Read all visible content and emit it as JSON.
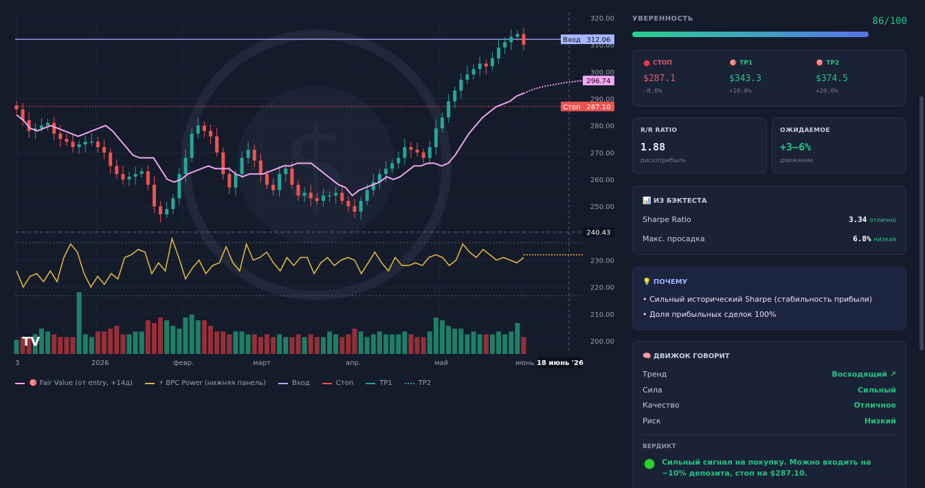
{
  "colors": {
    "bg": "#141b2b",
    "up": "#26a69a",
    "down": "#ef5350",
    "fair": "#f2a6f0",
    "power": "#e3b73a",
    "entry": "#a9b7ff",
    "stop": "#ef5350",
    "tp1": "#26a69a",
    "tp2": "#26a69a",
    "accent_green": "#26c281",
    "accent_red": "#e05d6a"
  },
  "chart_data": {
    "type": "candlestick",
    "y_ticks": [
      "320.00",
      "310.00",
      "300.00",
      "290.00",
      "280.00",
      "270.00",
      "260.00",
      "250.00",
      "240.00",
      "230.00",
      "220.00",
      "210.00",
      "200.00"
    ],
    "ylim": [
      196,
      321
    ],
    "x_ticks": [
      "3",
      "2026",
      "февр.",
      "март",
      "апр.",
      "май",
      "июнь"
    ],
    "crosshair_date": "18 июнь '26",
    "price_labels": {
      "entry": {
        "name": "Вход",
        "value": "312.06"
      },
      "fair": {
        "value": "296.74"
      },
      "stop": {
        "name": "Стоп",
        "value": "287.10"
      },
      "power": {
        "value": "240.43"
      }
    },
    "levels": {
      "entry": 312.06,
      "stop": 287.1,
      "fair_end": 296.74,
      "power_level": 240.43,
      "dotted_mid": 236.5,
      "dotted_low": 216.8
    },
    "close": [
      286,
      282,
      278,
      279,
      280,
      281,
      277,
      275,
      274,
      272,
      273,
      274,
      274,
      272,
      270,
      265,
      262,
      260,
      261,
      262,
      263,
      258,
      250,
      247,
      249,
      253,
      262,
      268,
      277,
      280,
      278,
      276,
      270,
      262,
      257,
      262,
      268,
      271,
      267,
      262,
      258,
      256,
      262,
      264,
      258,
      254,
      255,
      253,
      252,
      254,
      254,
      255,
      252,
      250,
      248,
      252,
      256,
      259,
      262,
      264,
      266,
      268,
      272,
      271,
      270,
      268,
      272,
      279,
      283,
      289,
      293,
      297,
      299,
      301,
      303,
      302,
      305,
      309,
      311,
      313,
      314,
      310
    ],
    "fair_value": [
      284,
      282,
      279,
      278,
      279,
      280,
      279,
      278,
      277,
      276,
      277,
      278,
      279,
      280,
      278,
      275,
      272,
      269,
      268,
      268,
      268,
      264,
      260,
      259,
      260,
      262,
      263,
      264,
      265,
      264,
      264,
      264,
      262,
      261,
      262,
      262,
      262,
      263,
      264,
      265,
      265,
      266,
      266,
      266,
      264,
      262,
      260,
      258,
      257,
      254,
      256,
      257,
      258,
      259,
      261,
      260,
      261,
      263,
      265,
      265,
      266,
      266,
      265,
      266,
      269,
      273,
      277,
      280,
      283,
      285,
      287,
      288,
      289,
      291,
      292
    ],
    "fair_projection": [
      292,
      293.5,
      294.5,
      295.2,
      295.8,
      296.3,
      296.74
    ],
    "power_panel": [
      226,
      220,
      224,
      225,
      222,
      226,
      222,
      231,
      236,
      233,
      225,
      220,
      224,
      221,
      225,
      223,
      231,
      232,
      234,
      233,
      225,
      229,
      226,
      238,
      231,
      223,
      227,
      230,
      225,
      228,
      229,
      235,
      229,
      226,
      236,
      230,
      231,
      233,
      229,
      226,
      231,
      228,
      231,
      231,
      225,
      229,
      231,
      228,
      230,
      231,
      230,
      225,
      229,
      233,
      229,
      226,
      231,
      228,
      228,
      229,
      228,
      231,
      232,
      231,
      228,
      230,
      236,
      233,
      231,
      234,
      232,
      230,
      231,
      230,
      229,
      231
    ],
    "power_projection": [
      232,
      232,
      232,
      232,
      232
    ],
    "volume": [
      5,
      6,
      6,
      7,
      9,
      8,
      7,
      6,
      6,
      6,
      22,
      7,
      6,
      8,
      8,
      9,
      10,
      7,
      7,
      8,
      8,
      12,
      11,
      13,
      12,
      10,
      9,
      13,
      14,
      12,
      12,
      10,
      8,
      8,
      7,
      8,
      8,
      7,
      7,
      6,
      7,
      6,
      7,
      6,
      6,
      7,
      6,
      7,
      6,
      6,
      8,
      7,
      6,
      7,
      9,
      8,
      6,
      7,
      8,
      7,
      7,
      7,
      8,
      7,
      6,
      6,
      8,
      13,
      12,
      10,
      9,
      9,
      7,
      8,
      7,
      7,
      7,
      8,
      7,
      8,
      11,
      6
    ]
  },
  "legend": [
    {
      "label": "🎯 Fair Value (от entry, +14д)",
      "color": "#f2a6f0",
      "style": "solid"
    },
    {
      "label": "⚡ BPC Power (нижняя панель)",
      "color": "#e3b73a",
      "style": "solid"
    },
    {
      "label": "Вход",
      "color": "#a9b7ff",
      "style": "solid"
    },
    {
      "label": "Стоп",
      "color": "#ef5350",
      "style": "solid"
    },
    {
      "label": "TP1",
      "color": "#26a69a",
      "style": "solid"
    },
    {
      "label": "TP2",
      "color": "#26a69a",
      "style": "dotted"
    }
  ],
  "confidence": {
    "label": "УВЕРЕННОСТЬ",
    "value": "86/100",
    "fraction": 0.86
  },
  "levels_card": {
    "stop": {
      "label": "СТОП",
      "price": "$287.1",
      "pct": "-8.0%"
    },
    "tp1": {
      "label": "TP1",
      "price": "$343.3",
      "pct": "+10.0%"
    },
    "tp2": {
      "label": "TP2",
      "price": "$374.5",
      "pct": "+20.0%"
    }
  },
  "rr": {
    "label": "R/R RATIO",
    "value": "1.88",
    "sub": "риск/прибыль"
  },
  "expected": {
    "label": "ОЖИДАЕМОЕ",
    "value": "+3–6%",
    "sub": "движение"
  },
  "backtest": {
    "label": "📊 ИЗ БЭКТЕСТА",
    "rows": [
      {
        "name": "Sharpe Ratio",
        "value": "3.34",
        "tag": "отлично"
      },
      {
        "name": "Макс. просадка",
        "value": "6.8%",
        "tag": "низкая"
      }
    ]
  },
  "why": {
    "label": "💡 ПОЧЕМУ",
    "items": [
      "• Сильный исторический Sharpe (стабильность прибыли)",
      "• Доля прибыльных сделок 100%"
    ]
  },
  "engine": {
    "label": "🧠 ДВИЖОК ГОВОРИТ",
    "rows": [
      {
        "name": "Тренд",
        "value": "Восходящий ↗"
      },
      {
        "name": "Сила",
        "value": "Сильный"
      },
      {
        "name": "Качество",
        "value": "Отличное"
      },
      {
        "name": "Риск",
        "value": "Низкий"
      }
    ],
    "verdict_label": "ВЕРДИКТ",
    "verdict": "Сильный сигнал на покупку. Можно входить на ~10% депозита, стоп на $287.10."
  }
}
